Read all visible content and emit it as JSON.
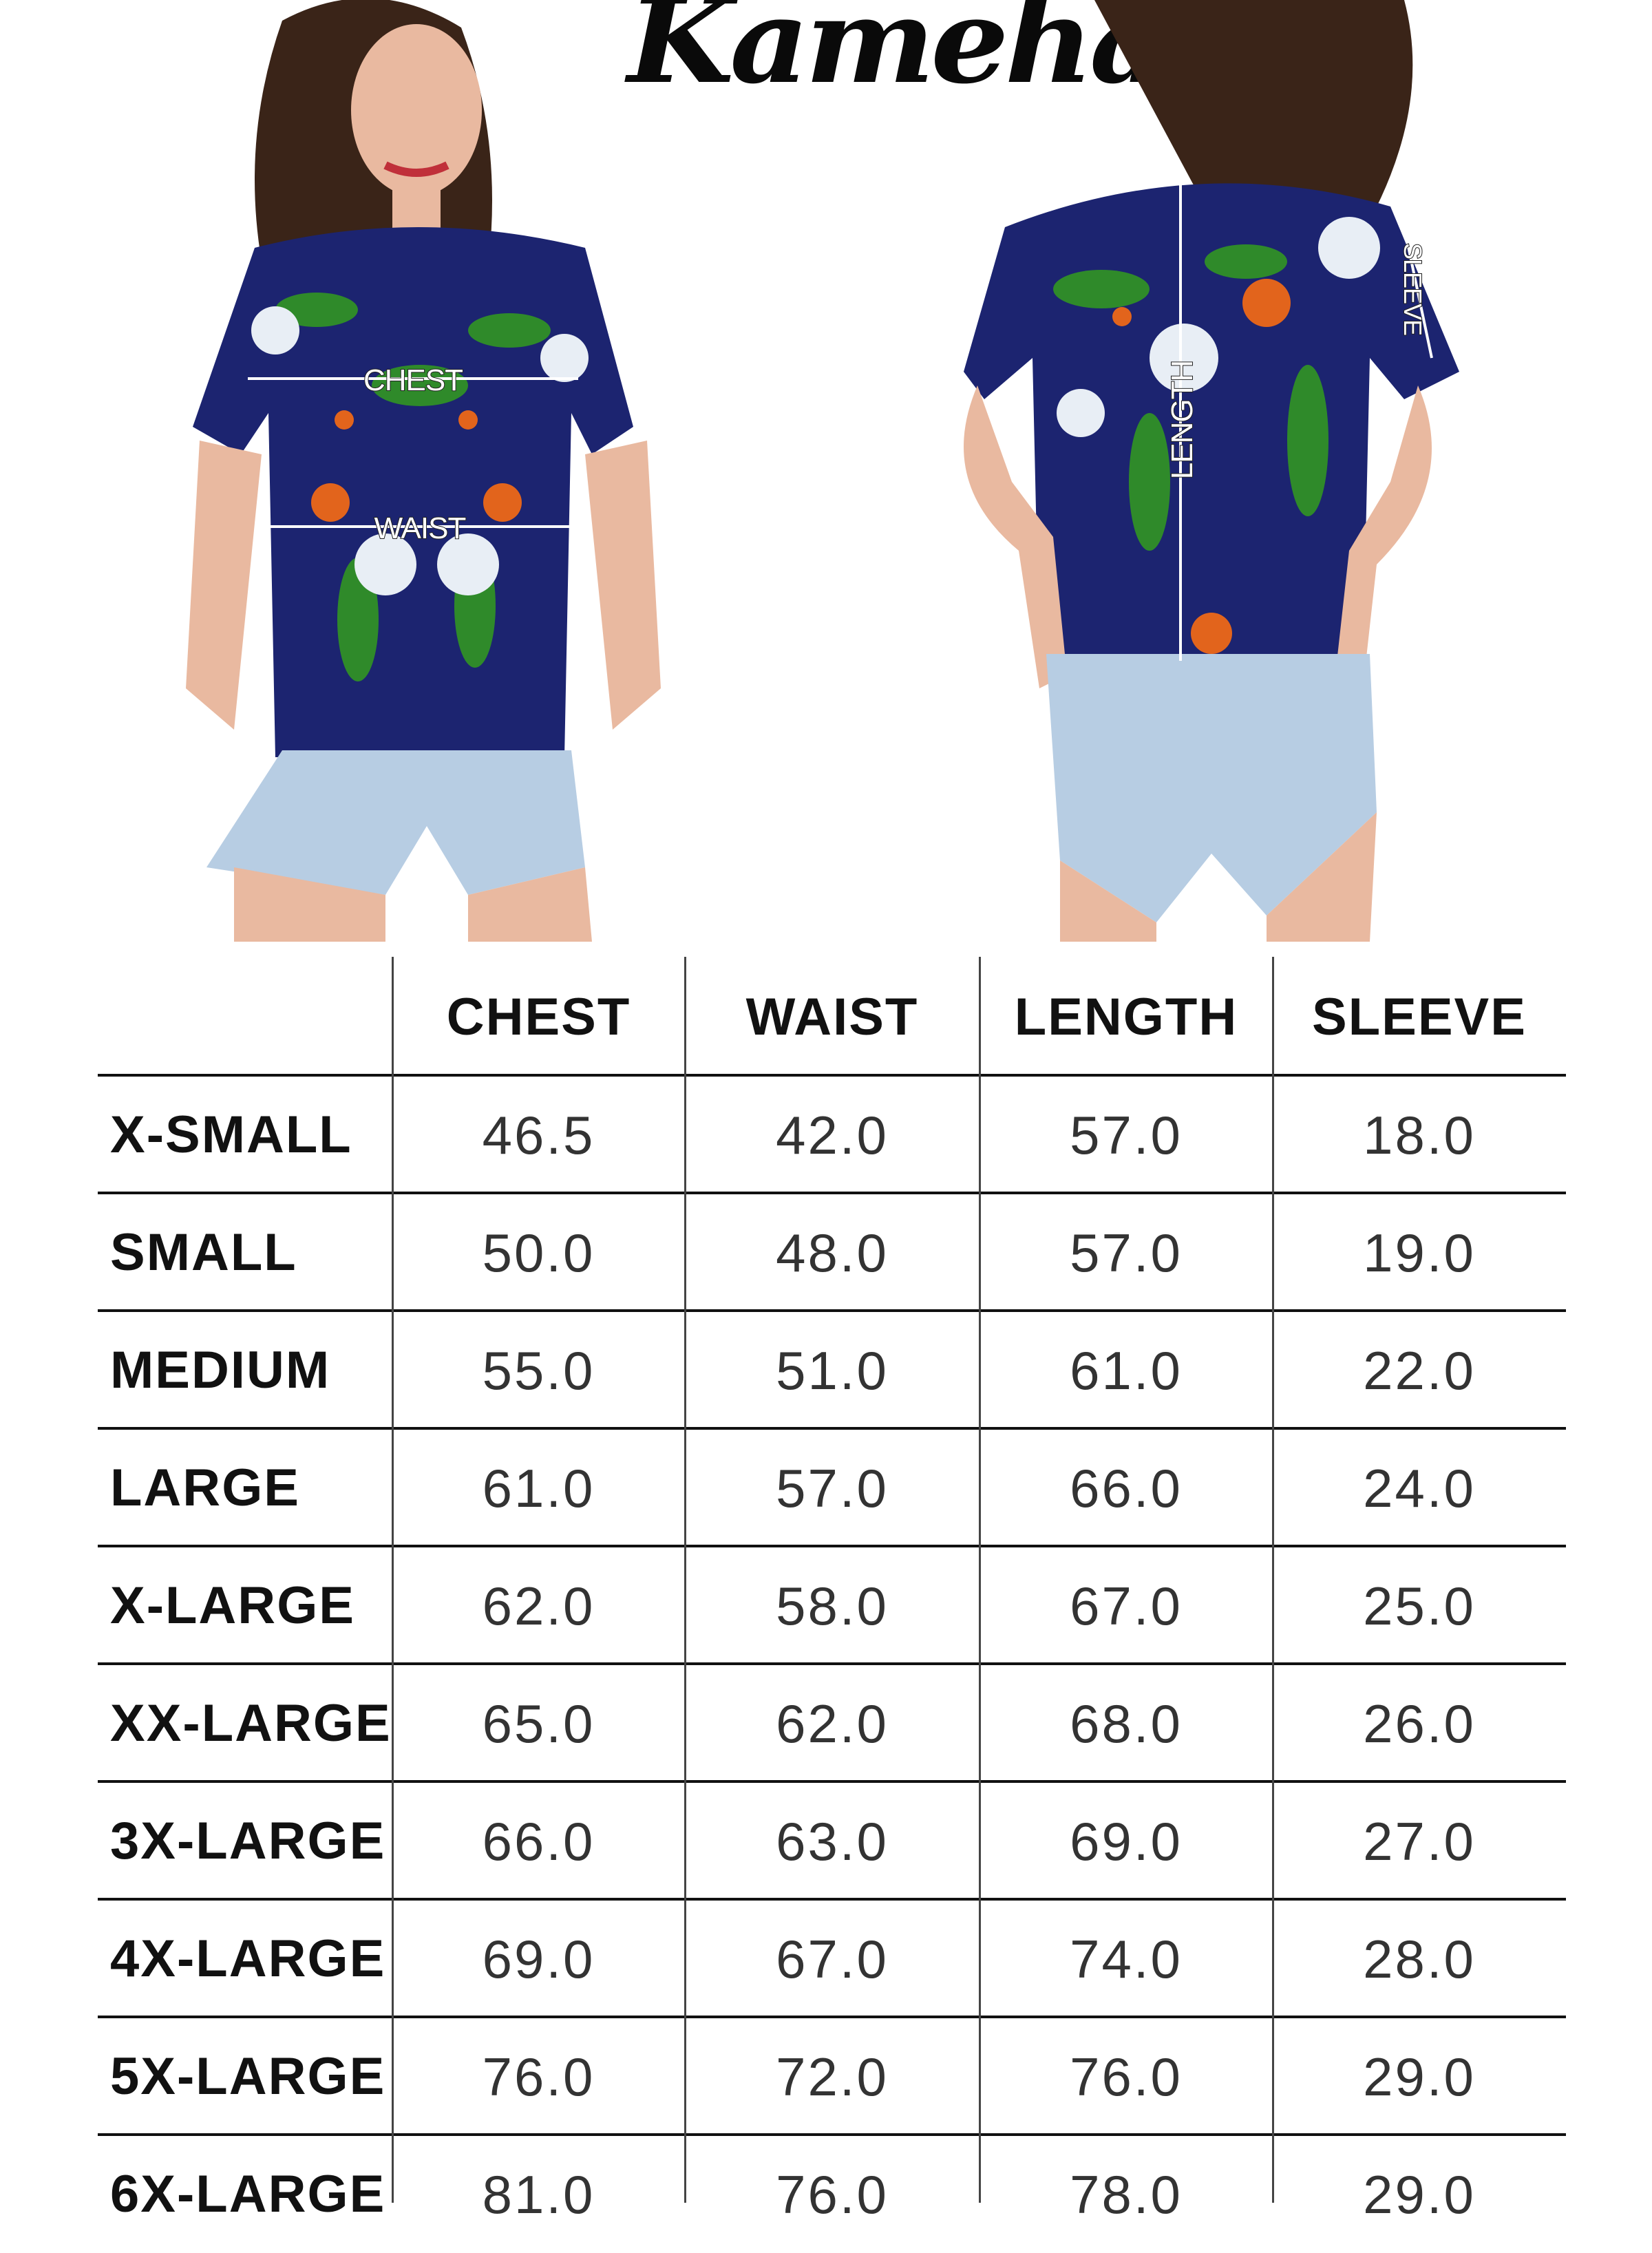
{
  "brand": {
    "logo_text": "Kameha"
  },
  "photos": {
    "front_labels": {
      "chest": "CHEST",
      "waist": "WAIST"
    },
    "back_labels": {
      "length": "LENGTH",
      "sleeve": "SLEEVE"
    }
  },
  "colors": {
    "shirt": "#1c2470",
    "leaf": "#2f8a2a",
    "flower": "#e8eef5",
    "parrot": "#e2641c",
    "denim": "#b7cde3",
    "skin": "#e9b9a0",
    "hair": "#3a2418"
  },
  "size_table": {
    "columns": [
      "CHEST",
      "WAIST",
      "LENGTH",
      "SLEEVE"
    ],
    "rows": [
      {
        "size": "X-SMALL",
        "values": [
          "46.5",
          "42.0",
          "57.0",
          "18.0"
        ]
      },
      {
        "size": "SMALL",
        "values": [
          "50.0",
          "48.0",
          "57.0",
          "19.0"
        ]
      },
      {
        "size": "MEDIUM",
        "values": [
          "55.0",
          "51.0",
          "61.0",
          "22.0"
        ]
      },
      {
        "size": "LARGE",
        "values": [
          "61.0",
          "57.0",
          "66.0",
          "24.0"
        ]
      },
      {
        "size": "X-LARGE",
        "values": [
          "62.0",
          "58.0",
          "67.0",
          "25.0"
        ]
      },
      {
        "size": "XX-LARGE",
        "values": [
          "65.0",
          "62.0",
          "68.0",
          "26.0"
        ]
      },
      {
        "size": "3X-LARGE",
        "values": [
          "66.0",
          "63.0",
          "69.0",
          "27.0"
        ]
      },
      {
        "size": "4X-LARGE",
        "values": [
          "69.0",
          "67.0",
          "74.0",
          "28.0"
        ]
      },
      {
        "size": "5X-LARGE",
        "values": [
          "76.0",
          "72.0",
          "76.0",
          "29.0"
        ]
      },
      {
        "size": "6X-LARGE",
        "values": [
          "81.0",
          "76.0",
          "78.0",
          "29.0"
        ]
      }
    ]
  }
}
